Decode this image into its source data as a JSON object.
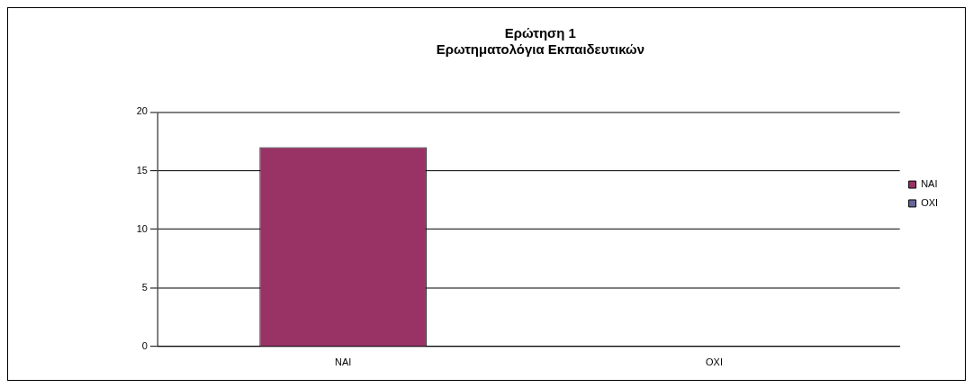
{
  "chart_data": {
    "type": "bar",
    "title": "Ερώτηση 1\nΕρωτηματολόγια Εκπαιδευτικών",
    "categories": [
      "NAI",
      "OXI"
    ],
    "series": [
      {
        "name": "NAI",
        "color": "#993366",
        "values": [
          17,
          null
        ]
      },
      {
        "name": "OXI",
        "color": "#666699",
        "values": [
          null,
          0
        ]
      }
    ],
    "ylim": [
      0,
      20
    ],
    "yticks": [
      0,
      5,
      10,
      15,
      20
    ],
    "grid": "y",
    "legend": "right"
  }
}
